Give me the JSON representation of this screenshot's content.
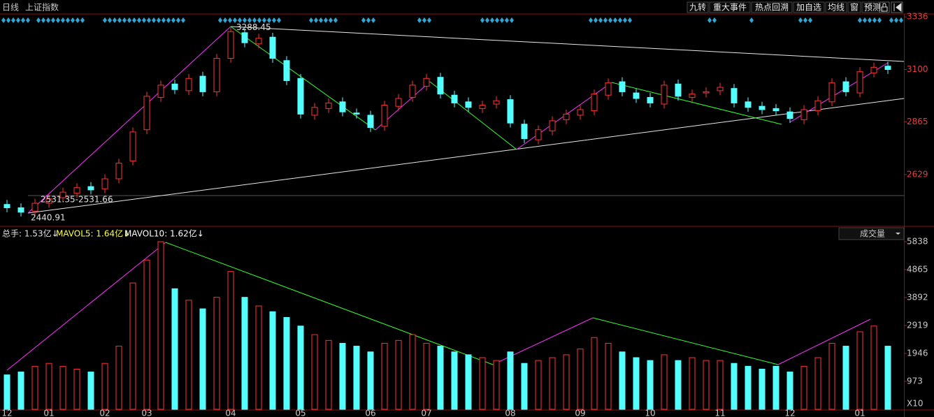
{
  "toolbar": {
    "period": "日线",
    "symbol": "上证指数",
    "buttons": [
      "九转",
      "重大事件",
      "热点回溯",
      "加自选",
      "均线",
      "窗",
      "预测"
    ]
  },
  "chart_data": [
    {
      "type": "candlestick",
      "open": [
        2495,
        2480,
        2465,
        2500,
        2525,
        2545,
        2575,
        2565,
        2610,
        2690,
        2830,
        2975,
        3035,
        3005,
        3070,
        3000,
        3150,
        3265,
        3215,
        3245,
        3140,
        3060,
        2895,
        2925,
        2955,
        2905,
        2895,
        2845,
        2935,
        2975,
        3025,
        3065,
        2985,
        2955,
        2925,
        2945,
        2965,
        2855,
        2785,
        2825,
        2875,
        2895,
        2915,
        2985,
        3045,
        2995,
        2975,
        2945,
        3035,
        2975,
        2995,
        3005,
        3015,
        2955,
        2935,
        2925,
        2910,
        2875,
        2915,
        2955,
        3045,
        2995,
        3085,
        3115
      ],
      "high": [
        2515,
        2500,
        2520,
        2540,
        2570,
        2590,
        2595,
        2630,
        2700,
        2840,
        3000,
        3050,
        3055,
        3080,
        3090,
        3170,
        3288.45,
        3285,
        3260,
        3265,
        3160,
        3080,
        2950,
        2970,
        2975,
        2925,
        2915,
        2960,
        2990,
        3050,
        3080,
        3085,
        3005,
        2975,
        2960,
        2980,
        2985,
        2875,
        2850,
        2890,
        2920,
        2940,
        3010,
        3060,
        3065,
        3015,
        2995,
        3050,
        3055,
        3010,
        3020,
        3040,
        3035,
        2975,
        2955,
        2945,
        2930,
        2940,
        2980,
        3060,
        3065,
        3110,
        3130,
        3135
      ],
      "low": [
        2460,
        2440.91,
        2445,
        2480,
        2505,
        2525,
        2540,
        2545,
        2590,
        2670,
        2810,
        2955,
        2990,
        2985,
        2980,
        2980,
        3130,
        3200,
        3195,
        3130,
        3030,
        2880,
        2875,
        2905,
        2890,
        2880,
        2820,
        2825,
        2915,
        2955,
        3005,
        2970,
        2930,
        2910,
        2905,
        2925,
        2840,
        2770,
        2765,
        2805,
        2855,
        2875,
        2895,
        2965,
        2980,
        2950,
        2930,
        2925,
        2960,
        2955,
        2975,
        2985,
        2930,
        2910,
        2900,
        2895,
        2860,
        2855,
        2895,
        2935,
        2980,
        2975,
        3065,
        3080
      ],
      "close": [
        2480,
        2460,
        2500,
        2520,
        2550,
        2570,
        2560,
        2610,
        2680,
        2820,
        2980,
        3030,
        3010,
        3060,
        3000,
        3150,
        3270,
        3220,
        3240,
        3150,
        3050,
        2900,
        2930,
        2950,
        2910,
        2900,
        2840,
        2940,
        2970,
        3030,
        3060,
        2990,
        2950,
        2930,
        2940,
        2960,
        2860,
        2790,
        2830,
        2870,
        2900,
        2920,
        2990,
        3040,
        3000,
        2970,
        2950,
        3030,
        2980,
        2990,
        3000,
        3020,
        2950,
        2930,
        2920,
        2915,
        2880,
        2920,
        2960,
        3040,
        3000,
        3090,
        3110,
        3100
      ],
      "up_color": "#ff3232",
      "down_color": "#54ffff",
      "ylim": [
        2400,
        3349
      ],
      "yticks": [
        2629,
        2865,
        3100,
        3336
      ],
      "annotations": [
        "3288.45",
        "2440.91",
        "2531.35-2531.66"
      ]
    },
    {
      "type": "bar",
      "legend": [
        "总手: 1.53亿↓",
        "MAVOL5: 1.64亿↓",
        "MAVOL10: 1.62亿↓"
      ],
      "indicator": "成交量",
      "unit_label": "X10",
      "categories": [
        "12",
        null,
        null,
        "01",
        null,
        null,
        null,
        "02",
        null,
        null,
        "03",
        null,
        null,
        null,
        null,
        null,
        "04",
        null,
        null,
        null,
        null,
        "05",
        null,
        null,
        null,
        null,
        "06",
        null,
        null,
        null,
        "07",
        null,
        null,
        null,
        null,
        null,
        "08",
        null,
        null,
        null,
        null,
        "09",
        null,
        null,
        null,
        null,
        "10",
        null,
        null,
        null,
        null,
        "11",
        null,
        null,
        null,
        null,
        "12",
        null,
        null,
        null,
        null,
        "01",
        null,
        null
      ],
      "values": [
        1200,
        1300,
        1500,
        1600,
        1500,
        1400,
        1300,
        1600,
        2200,
        4400,
        5200,
        5838,
        4200,
        3800,
        3500,
        3900,
        4800,
        3900,
        3600,
        3400,
        3200,
        2900,
        2600,
        2400,
        2300,
        2200,
        2000,
        2300,
        2400,
        2600,
        2300,
        2200,
        2000,
        1900,
        1800,
        1700,
        2000,
        1600,
        1700,
        1800,
        1900,
        2100,
        2500,
        2300,
        2000,
        1800,
        1700,
        1900,
        1700,
        1800,
        1700,
        1700,
        1600,
        1500,
        1400,
        1500,
        1300,
        1500,
        1800,
        2300,
        2200,
        2700,
        2900,
        2200
      ],
      "ylim": [
        0,
        5911
      ],
      "yticks": [
        973,
        1946,
        2919,
        3892,
        4865,
        5838
      ]
    }
  ]
}
